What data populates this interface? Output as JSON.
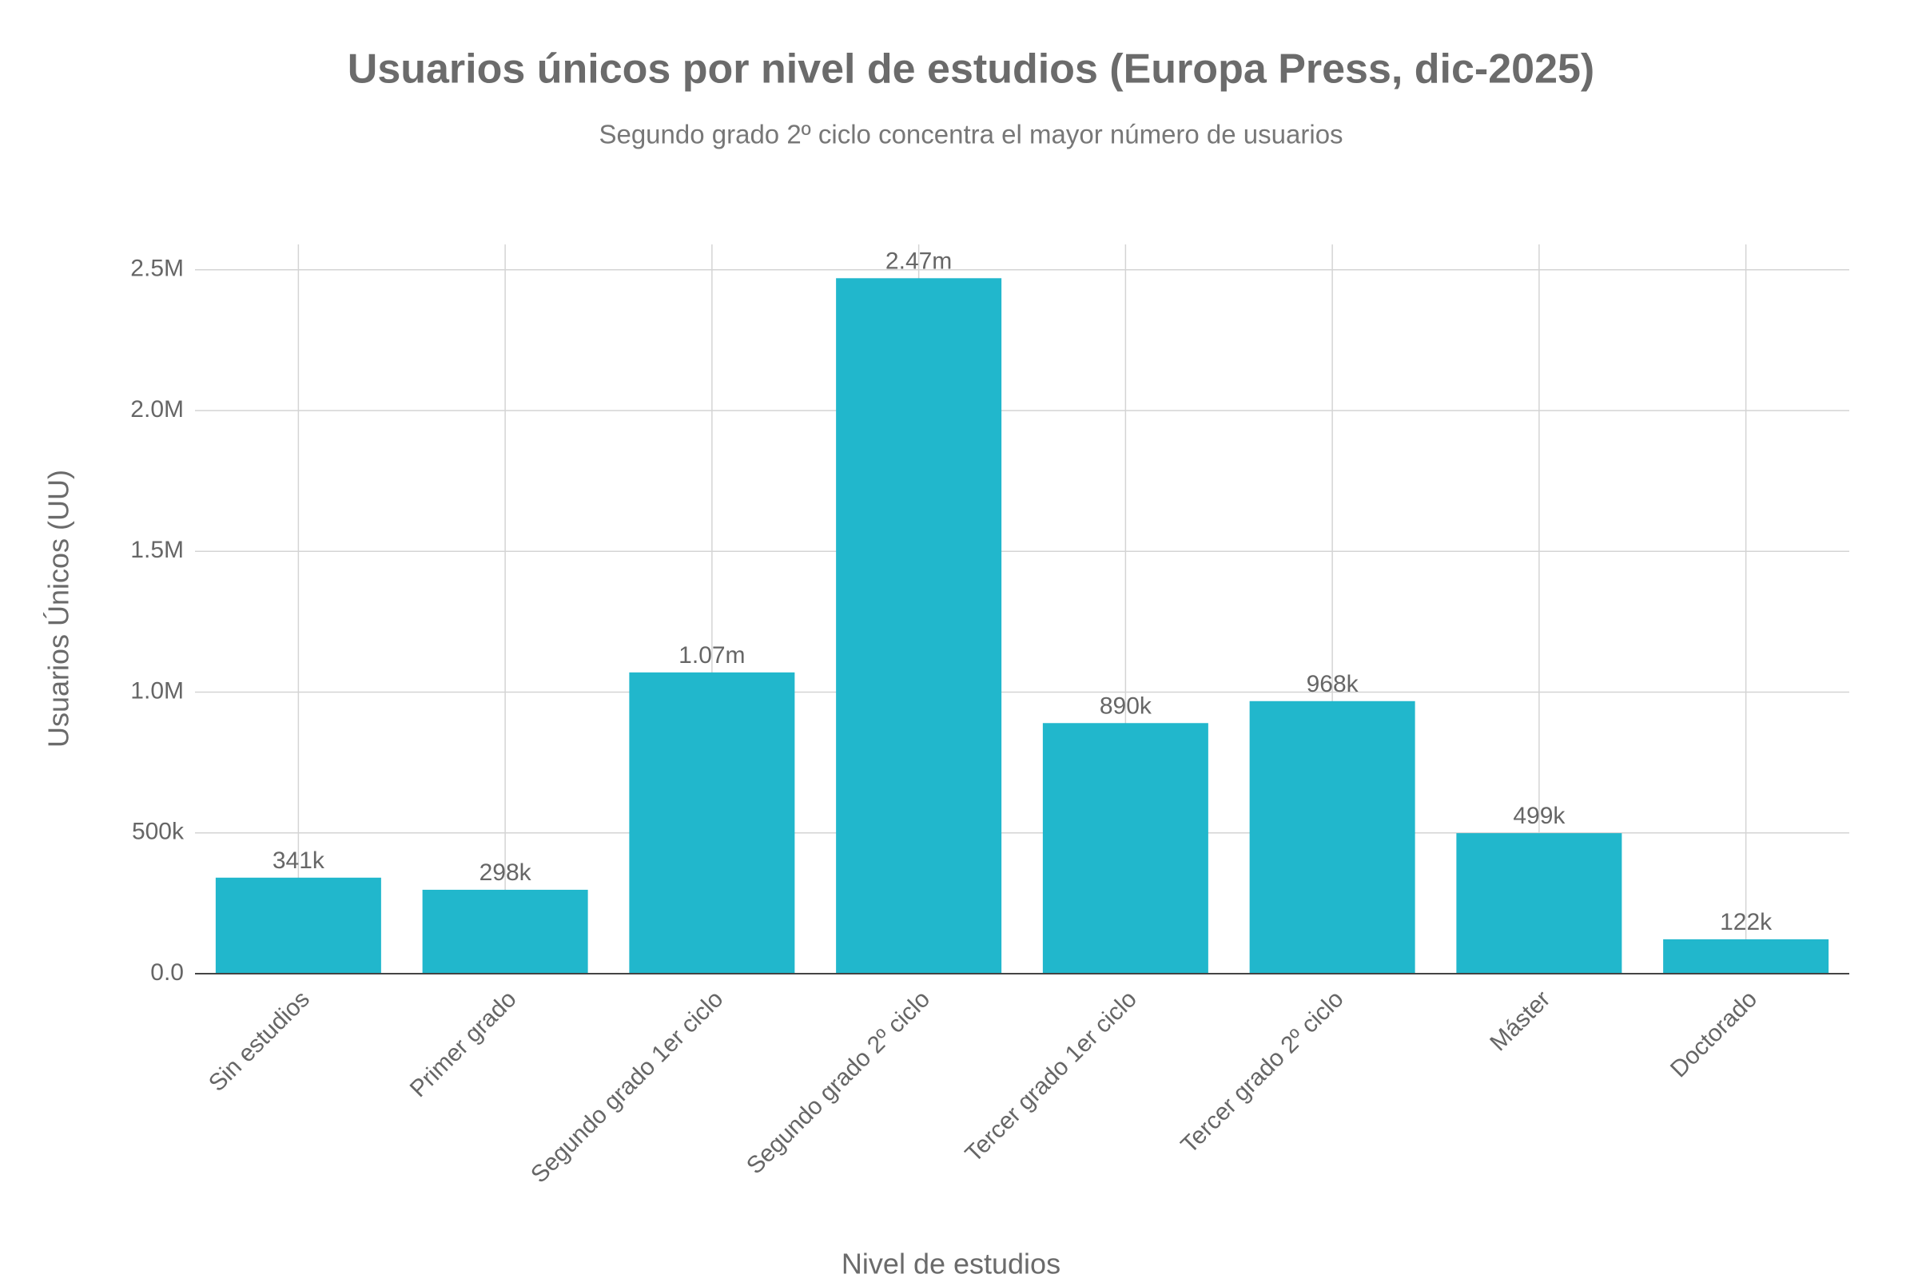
{
  "chart_data": {
    "type": "bar",
    "title": "Usuarios únicos por nivel de estudios (Europa Press, dic-2025)",
    "subtitle": "Segundo grado 2º ciclo concentra el mayor número de usuarios",
    "x_label": "Nivel de estudios",
    "y_label": "Usuarios Únicos (UU)",
    "categories": [
      "Sin estudios",
      "Primer grado",
      "Segundo grado 1er ciclo",
      "Segundo grado 2º ciclo",
      "Tercer grado 1er ciclo",
      "Tercer grado 2º ciclo",
      "Máster",
      "Doctorado"
    ],
    "values": [
      341000,
      298000,
      1070000,
      2470000,
      890000,
      968000,
      499000,
      122000
    ],
    "value_labels": [
      "341k",
      "298k",
      "1.07m",
      "2.47m",
      "890k",
      "968k",
      "499k",
      "122k"
    ],
    "color": "#21b7cc",
    "ylim": [
      0,
      2590000
    ],
    "yticks": [
      {
        "value": 0,
        "label": "0.0"
      },
      {
        "value": 500000,
        "label": "500k"
      },
      {
        "value": 1000000,
        "label": "1.0M"
      },
      {
        "value": 1500000,
        "label": "1.5M"
      },
      {
        "value": 2000000,
        "label": "2.0M"
      },
      {
        "value": 2500000,
        "label": "2.5M"
      }
    ],
    "grid": true
  }
}
